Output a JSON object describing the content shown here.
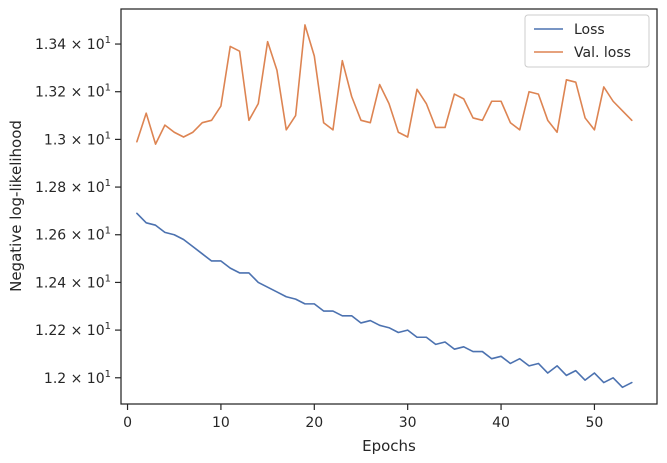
{
  "chart_data": {
    "type": "line",
    "xlabel": "Epochs",
    "ylabel": "Negative log-likelihood",
    "xlim": [
      -0.7,
      56.7
    ],
    "ylim": [
      11.89,
      13.547
    ],
    "x_ticks": [
      0,
      10,
      20,
      30,
      40,
      50
    ],
    "x_tick_labels": [
      "0",
      "10",
      "20",
      "30",
      "40",
      "50"
    ],
    "y_ticks": [
      12.0,
      12.2,
      12.4,
      12.6,
      12.8,
      13.0,
      13.2,
      13.4
    ],
    "y_tick_labels": [
      {
        "mantissa": "1.2",
        "exp": "1"
      },
      {
        "mantissa": "1.22",
        "exp": "1"
      },
      {
        "mantissa": "1.24",
        "exp": "1"
      },
      {
        "mantissa": "1.26",
        "exp": "1"
      },
      {
        "mantissa": "1.28",
        "exp": "1"
      },
      {
        "mantissa": "1.3",
        "exp": "1"
      },
      {
        "mantissa": "1.32",
        "exp": "1"
      },
      {
        "mantissa": "1.34",
        "exp": "1"
      }
    ],
    "grid": false,
    "legend_position": "top-right",
    "series": [
      {
        "name": "Loss",
        "color": "#4c72b0",
        "x": [
          1,
          2,
          3,
          4,
          5,
          6,
          7,
          8,
          9,
          10,
          11,
          12,
          13,
          14,
          15,
          16,
          17,
          18,
          19,
          20,
          21,
          22,
          23,
          24,
          25,
          26,
          27,
          28,
          29,
          30,
          31,
          32,
          33,
          34,
          35,
          36,
          37,
          38,
          39,
          40,
          41,
          42,
          43,
          44,
          45,
          46,
          47,
          48,
          49,
          50,
          51,
          52,
          53,
          54
        ],
        "y": [
          12.69,
          12.65,
          12.64,
          12.61,
          12.6,
          12.58,
          12.55,
          12.52,
          12.49,
          12.49,
          12.46,
          12.44,
          12.44,
          12.4,
          12.38,
          12.36,
          12.34,
          12.33,
          12.31,
          12.31,
          12.28,
          12.28,
          12.26,
          12.26,
          12.23,
          12.24,
          12.22,
          12.21,
          12.19,
          12.2,
          12.17,
          12.17,
          12.14,
          12.15,
          12.12,
          12.13,
          12.11,
          12.11,
          12.08,
          12.09,
          12.06,
          12.08,
          12.05,
          12.06,
          12.02,
          12.05,
          12.01,
          12.03,
          11.99,
          12.02,
          11.98,
          12.0,
          11.96,
          11.98
        ]
      },
      {
        "name": "Val. loss",
        "color": "#dd8452",
        "x": [
          1,
          2,
          3,
          4,
          5,
          6,
          7,
          8,
          9,
          10,
          11,
          12,
          13,
          14,
          15,
          16,
          17,
          18,
          19,
          20,
          21,
          22,
          23,
          24,
          25,
          26,
          27,
          28,
          29,
          30,
          31,
          32,
          33,
          34,
          35,
          36,
          37,
          38,
          39,
          40,
          41,
          42,
          43,
          44,
          45,
          46,
          47,
          48,
          49,
          50,
          51,
          52,
          53,
          54
        ],
        "y": [
          12.99,
          13.11,
          12.98,
          13.06,
          13.03,
          13.01,
          13.03,
          13.07,
          13.08,
          13.14,
          13.39,
          13.37,
          13.08,
          13.15,
          13.41,
          13.29,
          13.04,
          13.1,
          13.48,
          13.35,
          13.07,
          13.04,
          13.33,
          13.18,
          13.08,
          13.07,
          13.23,
          13.15,
          13.03,
          13.01,
          13.21,
          13.15,
          13.05,
          13.05,
          13.19,
          13.17,
          13.09,
          13.08,
          13.16,
          13.16,
          13.07,
          13.04,
          13.2,
          13.19,
          13.08,
          13.03,
          13.25,
          13.24,
          13.09,
          13.04,
          13.22,
          13.16,
          13.12,
          13.08
        ]
      }
    ]
  }
}
